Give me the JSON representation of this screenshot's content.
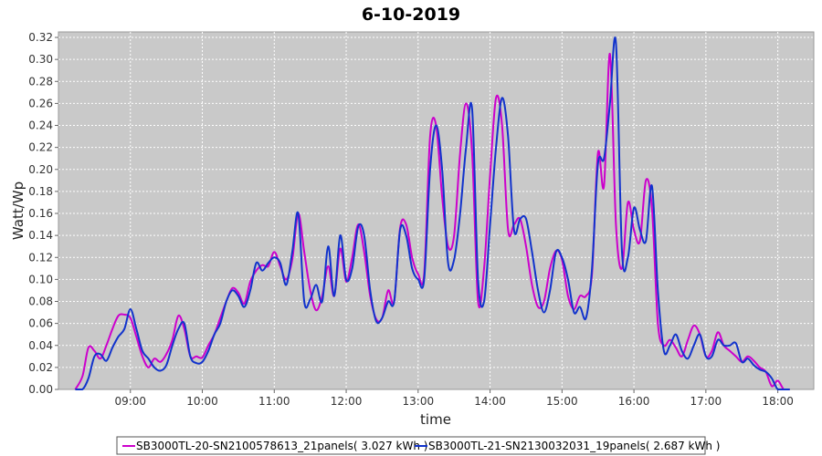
{
  "chart_data": {
    "type": "line",
    "title": "6-10-2019",
    "xlabel": "time",
    "ylabel": "Watt/Wp",
    "xlim": [
      "08:00",
      "18:30"
    ],
    "ylim": [
      0,
      0.325
    ],
    "grid": true,
    "legend_position": "bottom",
    "x_ticks": [
      "09:00",
      "10:00",
      "11:00",
      "12:00",
      "13:00",
      "14:00",
      "15:00",
      "16:00",
      "17:00",
      "18:00"
    ],
    "y_ticks": [
      "0.00",
      "0.02",
      "0.04",
      "0.06",
      "0.08",
      "0.10",
      "0.12",
      "0.14",
      "0.16",
      "0.18",
      "0.20",
      "0.22",
      "0.24",
      "0.26",
      "0.28",
      "0.30",
      "0.32"
    ],
    "series": [
      {
        "name": "SB3000TL-20-SN2100578613_21panels( 3.027 kWh )",
        "color": "#cc00cc",
        "x": [
          "08:14",
          "08:20",
          "08:25",
          "08:30",
          "08:35",
          "08:40",
          "08:45",
          "08:50",
          "08:55",
          "09:00",
          "09:05",
          "09:10",
          "09:15",
          "09:20",
          "09:25",
          "09:30",
          "09:35",
          "09:40",
          "09:45",
          "09:50",
          "09:55",
          "10:00",
          "10:05",
          "10:10",
          "10:15",
          "10:20",
          "10:25",
          "10:30",
          "10:35",
          "10:40",
          "10:45",
          "10:50",
          "10:55",
          "11:00",
          "11:05",
          "11:10",
          "11:15",
          "11:20",
          "11:25",
          "11:30",
          "11:35",
          "11:40",
          "11:45",
          "11:50",
          "11:55",
          "12:00",
          "12:05",
          "12:10",
          "12:15",
          "12:20",
          "12:25",
          "12:30",
          "12:35",
          "12:40",
          "12:45",
          "12:50",
          "12:55",
          "13:00",
          "13:05",
          "13:10",
          "13:15",
          "13:20",
          "13:25",
          "13:30",
          "13:35",
          "13:40",
          "13:45",
          "13:50",
          "13:55",
          "14:00",
          "14:05",
          "14:10",
          "14:15",
          "14:20",
          "14:25",
          "14:30",
          "14:35",
          "14:40",
          "14:45",
          "14:50",
          "14:55",
          "15:00",
          "15:05",
          "15:10",
          "15:15",
          "15:20",
          "15:25",
          "15:30",
          "15:35",
          "15:40",
          "15:45",
          "15:50",
          "15:55",
          "16:00",
          "16:05",
          "16:10",
          "16:15",
          "16:20",
          "16:25",
          "16:30",
          "16:35",
          "16:40",
          "16:45",
          "16:50",
          "16:55",
          "17:00",
          "17:05",
          "17:10",
          "17:15",
          "17:20",
          "17:25",
          "17:30",
          "17:35",
          "17:40",
          "17:45",
          "17:50",
          "17:55",
          "18:00",
          "18:05",
          "18:10"
        ],
        "y": [
          0.0,
          0.012,
          0.038,
          0.035,
          0.028,
          0.04,
          0.055,
          0.067,
          0.068,
          0.065,
          0.048,
          0.03,
          0.02,
          0.028,
          0.025,
          0.032,
          0.045,
          0.067,
          0.055,
          0.03,
          0.03,
          0.029,
          0.04,
          0.05,
          0.065,
          0.08,
          0.092,
          0.088,
          0.078,
          0.098,
          0.108,
          0.113,
          0.112,
          0.125,
          0.112,
          0.1,
          0.118,
          0.16,
          0.125,
          0.09,
          0.072,
          0.085,
          0.112,
          0.085,
          0.128,
          0.098,
          0.12,
          0.15,
          0.125,
          0.085,
          0.064,
          0.065,
          0.09,
          0.08,
          0.147,
          0.15,
          0.12,
          0.105,
          0.105,
          0.23,
          0.24,
          0.175,
          0.13,
          0.14,
          0.215,
          0.26,
          0.215,
          0.08,
          0.11,
          0.195,
          0.265,
          0.24,
          0.145,
          0.15,
          0.155,
          0.13,
          0.095,
          0.075,
          0.08,
          0.11,
          0.126,
          0.118,
          0.085,
          0.073,
          0.085,
          0.085,
          0.105,
          0.215,
          0.185,
          0.305,
          0.15,
          0.11,
          0.17,
          0.145,
          0.135,
          0.19,
          0.165,
          0.06,
          0.04,
          0.045,
          0.038,
          0.03,
          0.045,
          0.058,
          0.05,
          0.03,
          0.035,
          0.052,
          0.04,
          0.035,
          0.03,
          0.025,
          0.03,
          0.026,
          0.02,
          0.016,
          0.003,
          0.008,
          0.0,
          0.0
        ],
        "x_start": "08:14",
        "step_minutes": 5
      },
      {
        "name": "SB3000TL-21-SN2130032031_19panels( 2.687 kWh )",
        "color": "#1133cc",
        "x": [
          "08:14",
          "08:20",
          "08:25",
          "08:30",
          "08:35",
          "08:40",
          "08:45",
          "08:50",
          "08:55",
          "09:00",
          "09:05",
          "09:10",
          "09:15",
          "09:20",
          "09:25",
          "09:30",
          "09:35",
          "09:40",
          "09:45",
          "09:50",
          "09:55",
          "10:00",
          "10:05",
          "10:10",
          "10:15",
          "10:20",
          "10:25",
          "10:30",
          "10:35",
          "10:40",
          "10:45",
          "10:50",
          "10:55",
          "11:00",
          "11:05",
          "11:10",
          "11:15",
          "11:20",
          "11:25",
          "11:30",
          "11:35",
          "11:40",
          "11:45",
          "11:50",
          "11:55",
          "12:00",
          "12:05",
          "12:10",
          "12:15",
          "12:20",
          "12:25",
          "12:30",
          "12:35",
          "12:40",
          "12:45",
          "12:50",
          "12:55",
          "13:00",
          "13:05",
          "13:10",
          "13:15",
          "13:20",
          "13:25",
          "13:30",
          "13:35",
          "13:40",
          "13:45",
          "13:50",
          "13:55",
          "14:00",
          "14:05",
          "14:10",
          "14:15",
          "14:20",
          "14:25",
          "14:30",
          "14:35",
          "14:40",
          "14:45",
          "14:50",
          "14:55",
          "15:00",
          "15:05",
          "15:10",
          "15:15",
          "15:20",
          "15:25",
          "15:30",
          "15:35",
          "15:40",
          "15:45",
          "15:50",
          "15:55",
          "16:00",
          "16:05",
          "16:10",
          "16:15",
          "16:20",
          "16:25",
          "16:30",
          "16:35",
          "16:40",
          "16:45",
          "16:50",
          "16:55",
          "17:00",
          "17:05",
          "17:10",
          "17:15",
          "17:20",
          "17:25",
          "17:30",
          "17:35",
          "17:40",
          "17:45",
          "17:50",
          "17:55",
          "18:00",
          "18:05",
          "18:10"
        ],
        "y": [
          0.0,
          0.0,
          0.01,
          0.03,
          0.032,
          0.026,
          0.038,
          0.048,
          0.055,
          0.073,
          0.055,
          0.035,
          0.028,
          0.02,
          0.017,
          0.022,
          0.04,
          0.055,
          0.06,
          0.03,
          0.024,
          0.025,
          0.035,
          0.05,
          0.06,
          0.08,
          0.09,
          0.085,
          0.075,
          0.09,
          0.115,
          0.108,
          0.115,
          0.12,
          0.115,
          0.095,
          0.125,
          0.16,
          0.08,
          0.082,
          0.095,
          0.08,
          0.13,
          0.085,
          0.14,
          0.1,
          0.11,
          0.148,
          0.14,
          0.09,
          0.062,
          0.065,
          0.08,
          0.08,
          0.145,
          0.14,
          0.11,
          0.1,
          0.1,
          0.2,
          0.24,
          0.2,
          0.115,
          0.118,
          0.16,
          0.22,
          0.255,
          0.1,
          0.08,
          0.15,
          0.22,
          0.265,
          0.23,
          0.145,
          0.155,
          0.155,
          0.125,
          0.09,
          0.07,
          0.09,
          0.125,
          0.12,
          0.1,
          0.07,
          0.075,
          0.065,
          0.11,
          0.205,
          0.21,
          0.26,
          0.315,
          0.125,
          0.12,
          0.165,
          0.145,
          0.135,
          0.185,
          0.09,
          0.035,
          0.04,
          0.05,
          0.035,
          0.028,
          0.04,
          0.05,
          0.03,
          0.03,
          0.045,
          0.04,
          0.04,
          0.042,
          0.025,
          0.028,
          0.022,
          0.018,
          0.016,
          0.01,
          0.0,
          0.0,
          0.0
        ],
        "x_start": "08:14",
        "step_minutes": 5
      }
    ]
  }
}
